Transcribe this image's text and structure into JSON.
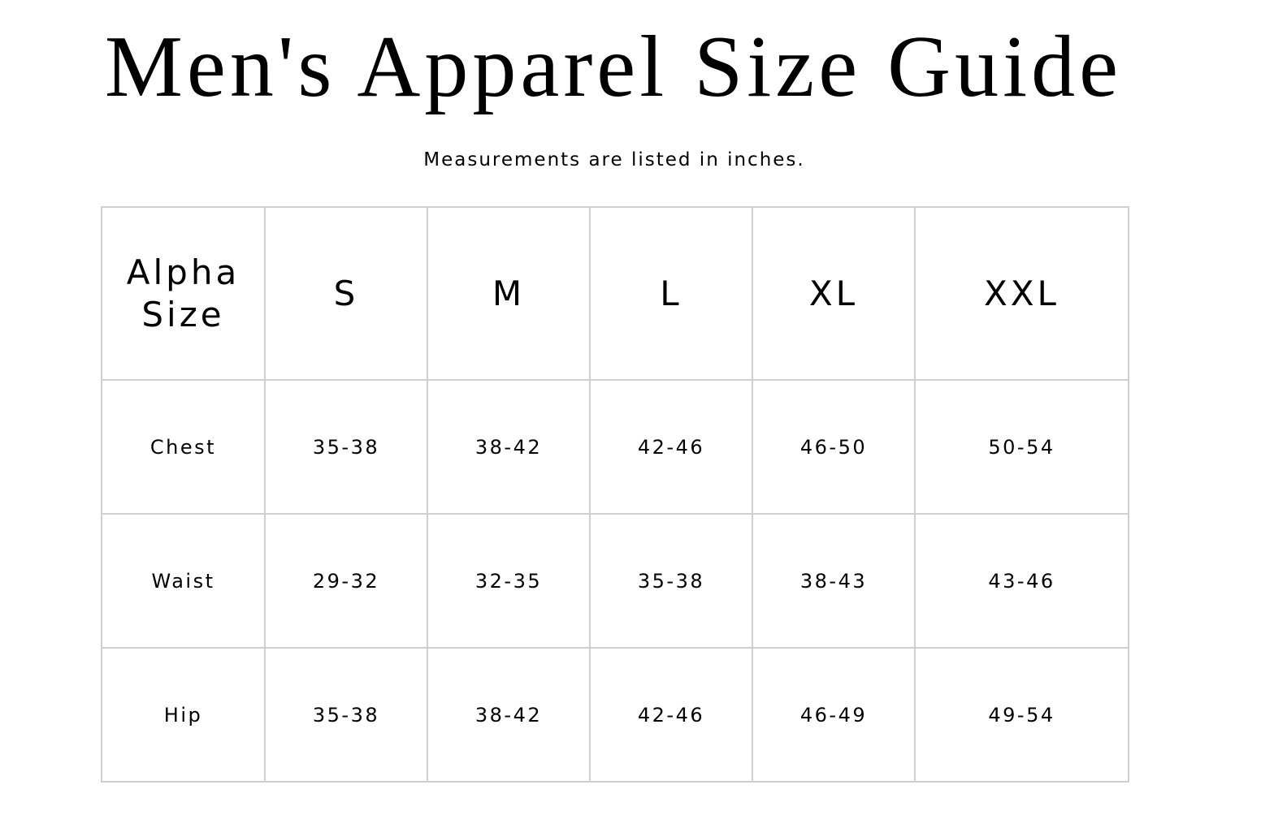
{
  "title": "Men's Apparel Size Guide",
  "subtitle": "Measurements are listed in inches.",
  "table": {
    "header": {
      "label_line1": "Alpha",
      "label_line2": "Size",
      "sizes": [
        "S",
        "M",
        "L",
        "XL",
        "XXL"
      ]
    },
    "rows": [
      {
        "label": "Chest",
        "values": [
          "35-38",
          "38-42",
          "42-46",
          "46-50",
          "50-54"
        ]
      },
      {
        "label": "Waist",
        "values": [
          "29-32",
          "32-35",
          "35-38",
          "38-43",
          "43-46"
        ]
      },
      {
        "label": "Hip",
        "values": [
          "35-38",
          "38-42",
          "42-46",
          "46-49",
          "49-54"
        ]
      }
    ]
  }
}
